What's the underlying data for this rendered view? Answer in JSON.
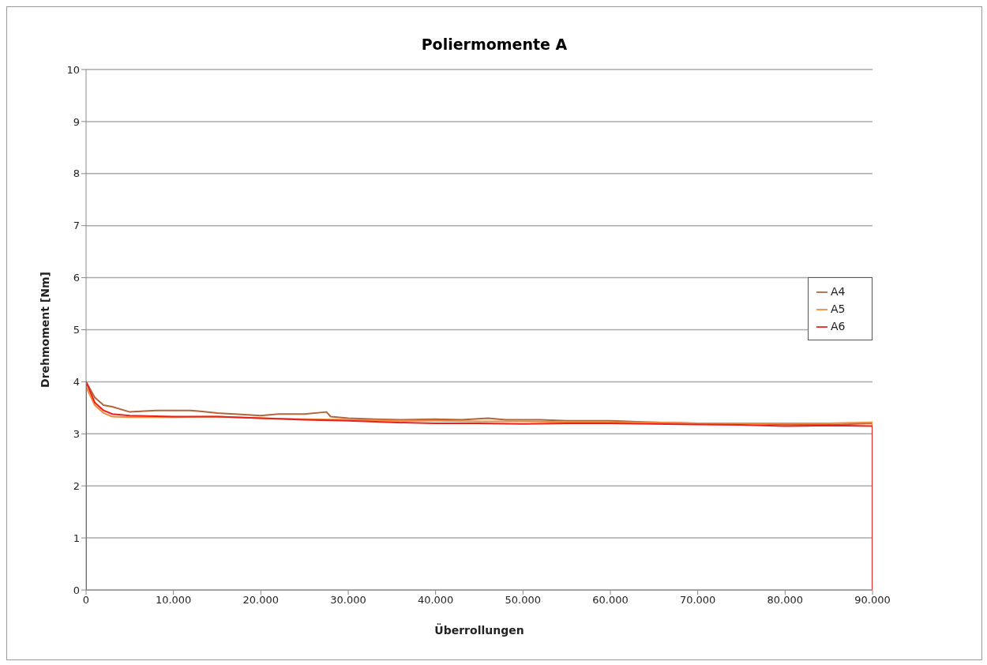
{
  "chart_data": {
    "type": "line",
    "title": "Poliermomente A",
    "xlabel": "Überrollungen",
    "ylabel": "Drehmoment [Nm]",
    "xlim": [
      0,
      90000
    ],
    "ylim": [
      0,
      10
    ],
    "xticks": [
      0,
      {
        "value": 10000,
        "label": "10.000"
      },
      {
        "value": 20000,
        "label": "20.000"
      },
      {
        "value": 30000,
        "label": "30.000"
      },
      {
        "value": 40000,
        "label": "40.000"
      },
      {
        "value": 50000,
        "label": "50.000"
      },
      {
        "value": 60000,
        "label": "60.000"
      },
      {
        "value": 70000,
        "label": "70.000"
      },
      {
        "value": 80000,
        "label": "80.000"
      },
      {
        "value": 90000,
        "label": "90.000"
      }
    ],
    "yticks": [
      0,
      1,
      2,
      3,
      4,
      5,
      6,
      7,
      8,
      9,
      10
    ],
    "grid": "y",
    "legend": "right",
    "marker": "none",
    "line_style": "solid",
    "series": [
      {
        "name": "A4",
        "color": "#b0653a",
        "x": [
          0,
          0,
          1000,
          2000,
          3000,
          5000,
          8000,
          10000,
          12000,
          15000,
          17000,
          20000,
          22000,
          25000,
          27500,
          28000,
          30000,
          33000,
          36000,
          40000,
          43000,
          46000,
          48000,
          52000,
          55000,
          60000,
          65000,
          70000,
          75000,
          80000,
          85000,
          90000,
          90000
        ],
        "values": [
          0,
          4.0,
          3.7,
          3.55,
          3.52,
          3.42,
          3.45,
          3.45,
          3.45,
          3.4,
          3.38,
          3.35,
          3.38,
          3.38,
          3.42,
          3.33,
          3.3,
          3.28,
          3.27,
          3.28,
          3.27,
          3.3,
          3.27,
          3.27,
          3.25,
          3.25,
          3.22,
          3.2,
          3.2,
          3.18,
          3.17,
          3.2,
          0
        ]
      },
      {
        "name": "A5",
        "color": "#f08a3c",
        "x": [
          0,
          0,
          1000,
          2000,
          3000,
          5000,
          10000,
          15000,
          20000,
          25000,
          30000,
          35000,
          40000,
          45000,
          50000,
          55000,
          60000,
          65000,
          70000,
          75000,
          80000,
          85000,
          90000,
          90000
        ],
        "values": [
          0,
          3.9,
          3.55,
          3.4,
          3.33,
          3.32,
          3.32,
          3.33,
          3.3,
          3.28,
          3.27,
          3.25,
          3.25,
          3.24,
          3.24,
          3.23,
          3.22,
          3.22,
          3.2,
          3.2,
          3.2,
          3.2,
          3.22,
          0
        ]
      },
      {
        "name": "A6",
        "color": "#e8201e",
        "x": [
          0,
          0,
          1000,
          2000,
          3000,
          5000,
          10000,
          15000,
          20000,
          25000,
          30000,
          35000,
          40000,
          45000,
          50000,
          55000,
          60000,
          65000,
          70000,
          75000,
          80000,
          85000,
          90000,
          90000
        ],
        "values": [
          0,
          4.0,
          3.6,
          3.45,
          3.38,
          3.35,
          3.33,
          3.33,
          3.3,
          3.27,
          3.25,
          3.22,
          3.2,
          3.2,
          3.19,
          3.2,
          3.2,
          3.19,
          3.18,
          3.17,
          3.15,
          3.16,
          3.15,
          0
        ]
      }
    ]
  }
}
